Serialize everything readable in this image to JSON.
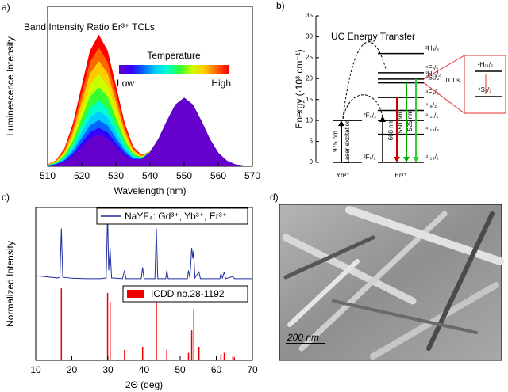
{
  "chart_data": [
    {
      "type": "area",
      "label": "a)",
      "title": "Band Intensity Ratio Er³⁺ TCLs",
      "colorbar": {
        "title": "Temperature",
        "low": "Low",
        "high": "High"
      },
      "xlabel": "Wavelength (nm)",
      "ylabel": "Luminescence Intensity",
      "xlim": [
        510,
        570
      ],
      "xticks": [
        510,
        520,
        530,
        540,
        550,
        560,
        570
      ],
      "ylim": [
        0,
        1.22
      ],
      "x": [
        510,
        512.5,
        515,
        517.5,
        520,
        522.5,
        525,
        527.5,
        530,
        532.5,
        535,
        537.5,
        540,
        542.5,
        545,
        547.5,
        550,
        552.5,
        555,
        557.5,
        560,
        562.5,
        565,
        567.5,
        570
      ],
      "series": [
        {
          "color": "#ff0000",
          "values": [
            0.011,
            0.044,
            0.135,
            0.325,
            0.607,
            0.882,
            1,
            0.882,
            0.607,
            0.328,
            0.147,
            0.084,
            0.11,
            0.207,
            0.344,
            0.469,
            0.52,
            0.469,
            0.344,
            0.205,
            0.099,
            0.04,
            0.012,
            0.003,
            0.001
          ]
        },
        {
          "color": "#ff6600",
          "values": [
            0.01,
            0.04,
            0.122,
            0.293,
            0.546,
            0.794,
            0.9,
            0.794,
            0.546,
            0.296,
            0.134,
            0.08,
            0.109,
            0.207,
            0.344,
            0.469,
            0.52,
            0.469,
            0.344,
            0.205,
            0.099,
            0.04,
            0.012,
            0.003,
            0.001
          ]
        },
        {
          "color": "#ffcc00",
          "values": [
            0.009,
            0.035,
            0.108,
            0.26,
            0.486,
            0.706,
            0.8,
            0.706,
            0.486,
            0.263,
            0.12,
            0.075,
            0.108,
            0.207,
            0.344,
            0.469,
            0.52,
            0.469,
            0.344,
            0.205,
            0.099,
            0.04,
            0.012,
            0.003,
            0.001
          ]
        },
        {
          "color": "#ccff00",
          "values": [
            0.008,
            0.031,
            0.095,
            0.228,
            0.425,
            0.617,
            0.7,
            0.617,
            0.425,
            0.231,
            0.107,
            0.071,
            0.107,
            0.206,
            0.344,
            0.469,
            0.52,
            0.469,
            0.344,
            0.205,
            0.099,
            0.04,
            0.012,
            0.003,
            0.001
          ]
        },
        {
          "color": "#33ff33",
          "values": [
            0.007,
            0.026,
            0.081,
            0.195,
            0.364,
            0.529,
            0.6,
            0.529,
            0.364,
            0.198,
            0.093,
            0.066,
            0.106,
            0.206,
            0.344,
            0.469,
            0.52,
            0.469,
            0.344,
            0.205,
            0.099,
            0.04,
            0.012,
            0.003,
            0.001
          ]
        },
        {
          "color": "#00ffcc",
          "values": [
            0.006,
            0.022,
            0.068,
            0.163,
            0.304,
            0.441,
            0.5,
            0.441,
            0.304,
            0.166,
            0.08,
            0.062,
            0.105,
            0.206,
            0.344,
            0.469,
            0.52,
            0.469,
            0.344,
            0.205,
            0.099,
            0.04,
            0.012,
            0.003,
            0.001
          ]
        },
        {
          "color": "#00ccff",
          "values": [
            0.005,
            0.018,
            0.057,
            0.137,
            0.255,
            0.37,
            0.42,
            0.37,
            0.255,
            0.14,
            0.069,
            0.058,
            0.104,
            0.206,
            0.344,
            0.469,
            0.52,
            0.469,
            0.344,
            0.205,
            0.099,
            0.04,
            0.012,
            0.003,
            0.001
          ]
        },
        {
          "color": "#0066ff",
          "values": [
            0.004,
            0.015,
            0.047,
            0.114,
            0.212,
            0.309,
            0.35,
            0.309,
            0.212,
            0.117,
            0.059,
            0.055,
            0.103,
            0.206,
            0.344,
            0.469,
            0.52,
            0.469,
            0.344,
            0.205,
            0.099,
            0.04,
            0.012,
            0.003,
            0.001
          ]
        },
        {
          "color": "#3300ff",
          "values": [
            0.003,
            0.013,
            0.039,
            0.094,
            0.176,
            0.256,
            0.29,
            0.256,
            0.176,
            0.097,
            0.051,
            0.053,
            0.102,
            0.206,
            0.344,
            0.469,
            0.52,
            0.469,
            0.344,
            0.205,
            0.099,
            0.04,
            0.012,
            0.003,
            0.001
          ]
        },
        {
          "color": "#6600cc",
          "values": [
            0.003,
            0.011,
            0.032,
            0.078,
            0.146,
            0.212,
            0.24,
            0.212,
            0.146,
            0.081,
            0.044,
            0.051,
            0.102,
            0.205,
            0.344,
            0.469,
            0.52,
            0.469,
            0.344,
            0.205,
            0.099,
            0.04,
            0.012,
            0.003,
            0.001
          ]
        }
      ]
    },
    {
      "type": "levels",
      "label": "b)",
      "title": "UC Energy Transfer",
      "ylabel": "Energy (·10³ cm⁻¹)",
      "ylim": [
        0,
        35
      ],
      "yticks": [
        0,
        5,
        10,
        15,
        20,
        25,
        30,
        35
      ],
      "ions": [
        {
          "name": "Yb³⁺",
          "levels": [
            {
              "label": "²F₇/₂",
              "energy": 0
            },
            {
              "label": "²F₅/₂",
              "energy": 10
            }
          ]
        },
        {
          "name": "Er³⁺",
          "levels": [
            {
              "label": "⁴I₁₅/₂",
              "energy": 0
            },
            {
              "label": "⁴I₁₃/₂",
              "energy": 6.7
            },
            {
              "label": "⁴I₁₁/₂",
              "energy": 10
            },
            {
              "label": "⁴I₉/₂",
              "energy": 12.4
            },
            {
              "label": "⁴F₉/₂",
              "energy": 15.5
            },
            {
              "label": "⁴S₃/₂",
              "energy": 19
            },
            {
              "label": "²H₁₁/₂",
              "energy": 19.9
            },
            {
              "label": "⁴F₇/₂",
              "energy": 21.4
            },
            {
              "label": "²H₉/₂",
              "energy": 26
            }
          ]
        }
      ],
      "transitions": [
        {
          "label": "975 nm",
          "note": "Laser excitation",
          "from": 0,
          "to": 10,
          "color": "#000000"
        },
        {
          "label": "660 nm",
          "from": 15.5,
          "to": 0,
          "color": "#cc0000"
        },
        {
          "label": "550 nm",
          "from": 19,
          "to": 0,
          "color": "#00aa00"
        },
        {
          "label": "525 nm",
          "from": 19.9,
          "to": 0,
          "color": "#33cc33"
        }
      ],
      "inset": {
        "title": "TCLs",
        "levels": [
          "²H₁₁/₂",
          "⁴S₃/₂"
        ]
      }
    },
    {
      "type": "line",
      "label": "c)",
      "xlabel": "2Θ (deg)",
      "ylabel": "Normalized Intensity",
      "xlim": [
        10,
        70
      ],
      "xticks": [
        10,
        20,
        30,
        40,
        50,
        60,
        70
      ],
      "ylim": [
        0,
        1.02
      ],
      "series": [
        {
          "name": "NaYF₄: Gd³⁺, Yb³⁺, Er³⁺",
          "color": "#1f2f9f",
          "style": "line",
          "x": [
            10,
            12,
            14,
            16,
            16.7,
            17.1,
            17.5,
            20,
            24,
            28,
            29.5,
            29.9,
            30.2,
            30.6,
            31,
            34,
            34.6,
            35,
            39.2,
            39.6,
            40,
            43,
            43.4,
            43.8,
            46,
            46.3,
            46.7,
            52,
            52.3,
            52.7,
            53.2,
            53.5,
            53.7,
            54.1,
            55.2,
            55.6,
            61,
            61.3,
            61.7,
            62.2,
            62.6,
            64.6,
            65,
            70
          ],
          "values": [
            0.565,
            0.56,
            0.555,
            0.55,
            0.555,
            0.88,
            0.555,
            0.548,
            0.545,
            0.545,
            0.55,
            0.98,
            0.6,
            0.75,
            0.55,
            0.545,
            0.6,
            0.545,
            0.545,
            0.62,
            0.545,
            0.545,
            0.88,
            0.545,
            0.545,
            0.6,
            0.545,
            0.545,
            0.6,
            0.55,
            0.75,
            0.68,
            0.73,
            0.55,
            0.59,
            0.545,
            0.545,
            0.58,
            0.55,
            0.59,
            0.545,
            0.56,
            0.545,
            0.545
          ]
        },
        {
          "name": "ICDD no.28-1192",
          "color": "#ee0000",
          "style": "stick",
          "x": [
            17.1,
            29.9,
            30.6,
            34.6,
            39.6,
            43.4,
            46.3,
            52.3,
            53.2,
            53.8,
            55.2,
            61.3,
            62.2,
            64.6,
            65
          ],
          "values": [
            0.48,
            0.45,
            0.39,
            0.07,
            0.09,
            0.41,
            0.07,
            0.05,
            0.2,
            0.34,
            0.09,
            0.04,
            0.05,
            0.03,
            0.02
          ]
        }
      ]
    }
  ],
  "image": {
    "label": "d)",
    "scale_bar": "200 nm"
  }
}
